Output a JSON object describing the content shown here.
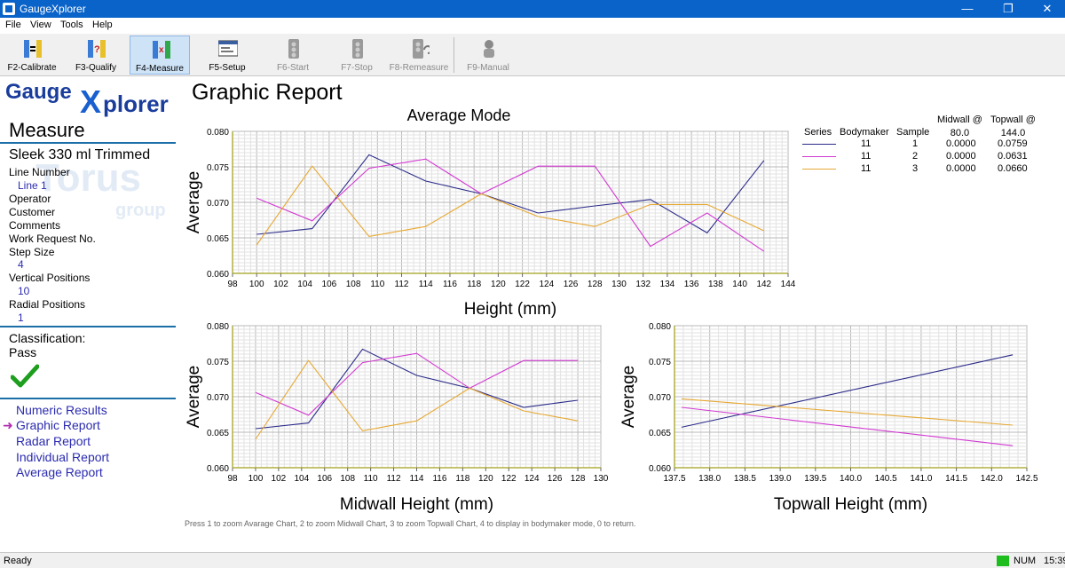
{
  "window": {
    "title": "GaugeXplorer"
  },
  "menu": [
    "File",
    "View",
    "Tools",
    "Help"
  ],
  "toolbar": [
    {
      "label": "F2-Calibrate",
      "icon": "calibrate-icon",
      "state": "normal"
    },
    {
      "label": "F3-Qualify",
      "icon": "qualify-icon",
      "state": "normal"
    },
    {
      "label": "F4-Measure",
      "icon": "measure-icon",
      "state": "active"
    },
    {
      "label": "F5-Setup",
      "icon": "setup-icon",
      "state": "normal"
    },
    {
      "label": "F6-Start",
      "icon": "start-icon",
      "state": "disabled"
    },
    {
      "label": "F7-Stop",
      "icon": "stop-icon",
      "state": "disabled"
    },
    {
      "label": "F8-Remeasure",
      "icon": "remeasure-icon",
      "state": "disabled"
    },
    {
      "label": "F9-Manual",
      "icon": "manual-icon",
      "state": "disabled"
    }
  ],
  "sidebar": {
    "logo": {
      "part1": "Gauge",
      "part2": "X",
      "part3": "plorer"
    },
    "watermark": {
      "big": "Torus",
      "small": "group"
    },
    "title": "Measure",
    "product": "Sleek 330 ml Trimmed",
    "fields": [
      {
        "label": "Line Number",
        "value": "Line 1"
      },
      {
        "label": "Operator",
        "value": ""
      },
      {
        "label": "Customer",
        "value": ""
      },
      {
        "label": "Comments",
        "value": ""
      },
      {
        "label": "Work Request No.",
        "value": ""
      },
      {
        "label": "Step Size",
        "value": "4"
      },
      {
        "label": "Vertical Positions",
        "value": "10"
      },
      {
        "label": "Radial Positions",
        "value": "1"
      }
    ],
    "classification_label": "Classification:",
    "classification_value": "Pass",
    "nav": [
      {
        "label": "Numeric Results",
        "active": false
      },
      {
        "label": "Graphic Report",
        "active": true
      },
      {
        "label": "Radar Report",
        "active": false
      },
      {
        "label": "Individual Report",
        "active": false
      },
      {
        "label": "Average Report",
        "active": false
      }
    ]
  },
  "report": {
    "title": "Graphic Report",
    "hint": "Press 1 to zoom Avarage Chart, 2 to zoom Midwall Chart, 3 to zoom Topwall Chart, 4 to display in bodymaker mode, 0 to return.",
    "legend": {
      "headers": [
        "Series",
        "Bodymaker",
        "Sample",
        "Midwall @\n80.0",
        "Topwall @\n144.0"
      ],
      "rows": [
        {
          "color": "#2b2b8a",
          "bodymaker": "11",
          "sample": "1",
          "midwall": "0.0000",
          "topwall": "0.0759"
        },
        {
          "color": "#d23ad2",
          "bodymaker": "11",
          "sample": "2",
          "midwall": "0.0000",
          "topwall": "0.0631"
        },
        {
          "color": "#e6a832",
          "bodymaker": "11",
          "sample": "3",
          "midwall": "0.0000",
          "topwall": "0.0660"
        }
      ]
    }
  },
  "chart_data": [
    {
      "type": "line",
      "title": "Average Mode",
      "xlabel": "Height (mm)",
      "ylabel": "Average",
      "xlim": [
        98,
        144
      ],
      "ylim": [
        0.06,
        0.08
      ],
      "xticks": [
        "98",
        "100",
        "102",
        "104",
        "106",
        "108",
        "110",
        "112",
        "114",
        "116",
        "118",
        "120",
        "122",
        "124",
        "126",
        "128",
        "130",
        "132",
        "134",
        "136",
        "138",
        "140",
        "142",
        "144"
      ],
      "yticks": [
        "0.060",
        "0.065",
        "0.070",
        "0.075",
        "0.080"
      ],
      "grid": true,
      "series": [
        {
          "color": "#2b2b8a",
          "x": [
            100,
            104.6,
            109.3,
            114,
            118.6,
            123.3,
            128,
            132.6,
            137.3,
            142
          ],
          "y": [
            0.0655,
            0.0663,
            0.0767,
            0.073,
            0.0712,
            0.0685,
            0.0695,
            0.0704,
            0.0657,
            0.0759
          ]
        },
        {
          "color": "#d23ad2",
          "x": [
            100,
            104.6,
            109.3,
            114,
            118.6,
            123.3,
            128,
            132.6,
            137.3,
            142
          ],
          "y": [
            0.0706,
            0.0674,
            0.0748,
            0.0761,
            0.0712,
            0.0751,
            0.0751,
            0.0638,
            0.0685,
            0.0631
          ]
        },
        {
          "color": "#e6a832",
          "x": [
            100,
            104.6,
            109.3,
            114,
            118.6,
            123.3,
            128,
            132.6,
            137.3,
            142
          ],
          "y": [
            0.064,
            0.0751,
            0.0652,
            0.0666,
            0.0712,
            0.068,
            0.0666,
            0.0697,
            0.0697,
            0.066
          ]
        }
      ]
    },
    {
      "type": "line",
      "title": "",
      "xlabel": "Midwall Height (mm)",
      "ylabel": "Average",
      "xlim": [
        98,
        130
      ],
      "ylim": [
        0.06,
        0.08
      ],
      "xticks": [
        "98",
        "100",
        "102",
        "104",
        "106",
        "108",
        "110",
        "112",
        "114",
        "116",
        "118",
        "120",
        "122",
        "124",
        "126",
        "128",
        "130"
      ],
      "yticks": [
        "0.060",
        "0.065",
        "0.070",
        "0.075",
        "0.080"
      ],
      "grid": true,
      "series": [
        {
          "color": "#2b2b8a",
          "x": [
            100,
            104.6,
            109.3,
            114,
            118.6,
            123.3,
            128
          ],
          "y": [
            0.0655,
            0.0663,
            0.0767,
            0.073,
            0.0712,
            0.0685,
            0.0695
          ]
        },
        {
          "color": "#d23ad2",
          "x": [
            100,
            104.6,
            109.3,
            114,
            118.6,
            123.3,
            128
          ],
          "y": [
            0.0706,
            0.0674,
            0.0748,
            0.0761,
            0.0712,
            0.0751,
            0.0751
          ]
        },
        {
          "color": "#e6a832",
          "x": [
            100,
            104.6,
            109.3,
            114,
            118.6,
            123.3,
            128
          ],
          "y": [
            0.064,
            0.0751,
            0.0652,
            0.0666,
            0.0712,
            0.068,
            0.0666
          ]
        }
      ]
    },
    {
      "type": "line",
      "title": "",
      "xlabel": "Topwall Height (mm)",
      "ylabel": "Average",
      "xlim": [
        137.5,
        142.5
      ],
      "ylim": [
        0.06,
        0.08
      ],
      "xticks": [
        "137.5",
        "138.0",
        "138.5",
        "139.0",
        "139.5",
        "140.0",
        "140.5",
        "141.0",
        "141.5",
        "142.0",
        "142.5"
      ],
      "yticks": [
        "0.060",
        "0.065",
        "0.070",
        "0.075",
        "0.080"
      ],
      "grid": true,
      "series": [
        {
          "color": "#2b2b8a",
          "x": [
            137.6,
            142.3
          ],
          "y": [
            0.0657,
            0.0759
          ]
        },
        {
          "color": "#d23ad2",
          "x": [
            137.6,
            142.3
          ],
          "y": [
            0.0685,
            0.0631
          ]
        },
        {
          "color": "#e6a832",
          "x": [
            137.6,
            142.3
          ],
          "y": [
            0.0697,
            0.066
          ]
        }
      ]
    }
  ],
  "status": {
    "text": "Ready",
    "num": "NUM",
    "clock": "15:39"
  }
}
